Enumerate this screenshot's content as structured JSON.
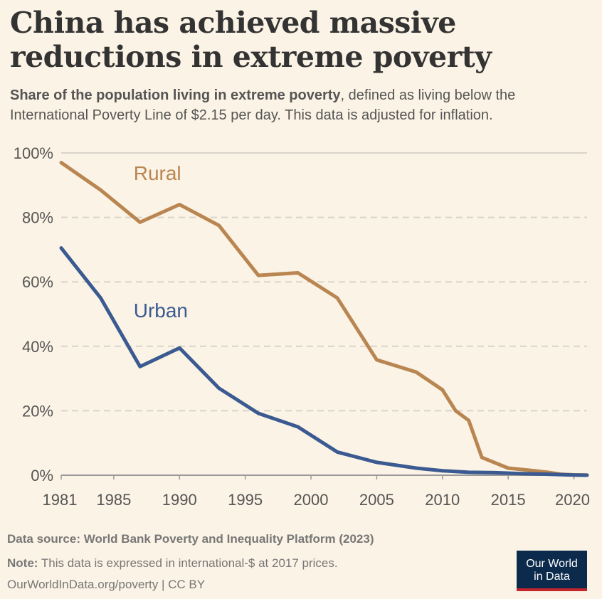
{
  "title": "China has achieved massive reductions in extreme poverty",
  "subtitle_bold": "Share of the population living in extreme poverty",
  "subtitle_rest": ", defined as living below the International Poverty Line of $2.15 per day. This data is adjusted for inflation.",
  "footer": {
    "source_label": "Data source:",
    "source_text": "World Bank Poverty and Inequality Platform (2023)",
    "note_label": "Note:",
    "note_text": "This data is expressed in international-$ at 2017 prices.",
    "url": "OurWorldInData.org/poverty | CC BY"
  },
  "logo": {
    "line1": "Our World",
    "line2": "in Data"
  },
  "colors": {
    "rural": "#b98550",
    "urban": "#3a5a91",
    "background": "#fbf3e5",
    "logo_bg": "#0c2a4b",
    "logo_accent": "#c4242b"
  },
  "chart_data": {
    "type": "line",
    "y_ticks": [
      "0%",
      "20%",
      "40%",
      "60%",
      "80%",
      "100%"
    ],
    "x_ticks": [
      "1981",
      "1985",
      "1990",
      "1995",
      "2000",
      "2005",
      "2010",
      "2015",
      "2020"
    ],
    "xlim": [
      1981,
      2021
    ],
    "ylim": [
      0,
      100
    ],
    "grid": "horizontal dashed",
    "legend": "inline labels",
    "series": [
      {
        "name": "Rural",
        "color": "#b98550",
        "x": [
          1981,
          1984,
          1987,
          1990,
          1993,
          1996,
          1999,
          2002,
          2005,
          2008,
          2010,
          2011,
          2012,
          2013,
          2015,
          2017,
          2018,
          2019,
          2020,
          2021
        ],
        "y": [
          97,
          88.5,
          78.5,
          84,
          77.5,
          62,
          62.8,
          55,
          35.8,
          32,
          26.5,
          20,
          17,
          5.5,
          2.2,
          1.4,
          0.9,
          0.3,
          0.1,
          0.05
        ]
      },
      {
        "name": "Urban",
        "color": "#3a5a91",
        "x": [
          1981,
          1984,
          1987,
          1990,
          1993,
          1996,
          1999,
          2002,
          2005,
          2008,
          2010,
          2012,
          2014,
          2016,
          2018,
          2020,
          2021
        ],
        "y": [
          70.5,
          55,
          33.7,
          39.5,
          27,
          19.2,
          15,
          7.2,
          4,
          2.2,
          1.4,
          0.9,
          0.8,
          0.5,
          0.3,
          0.05,
          0
        ]
      }
    ]
  }
}
